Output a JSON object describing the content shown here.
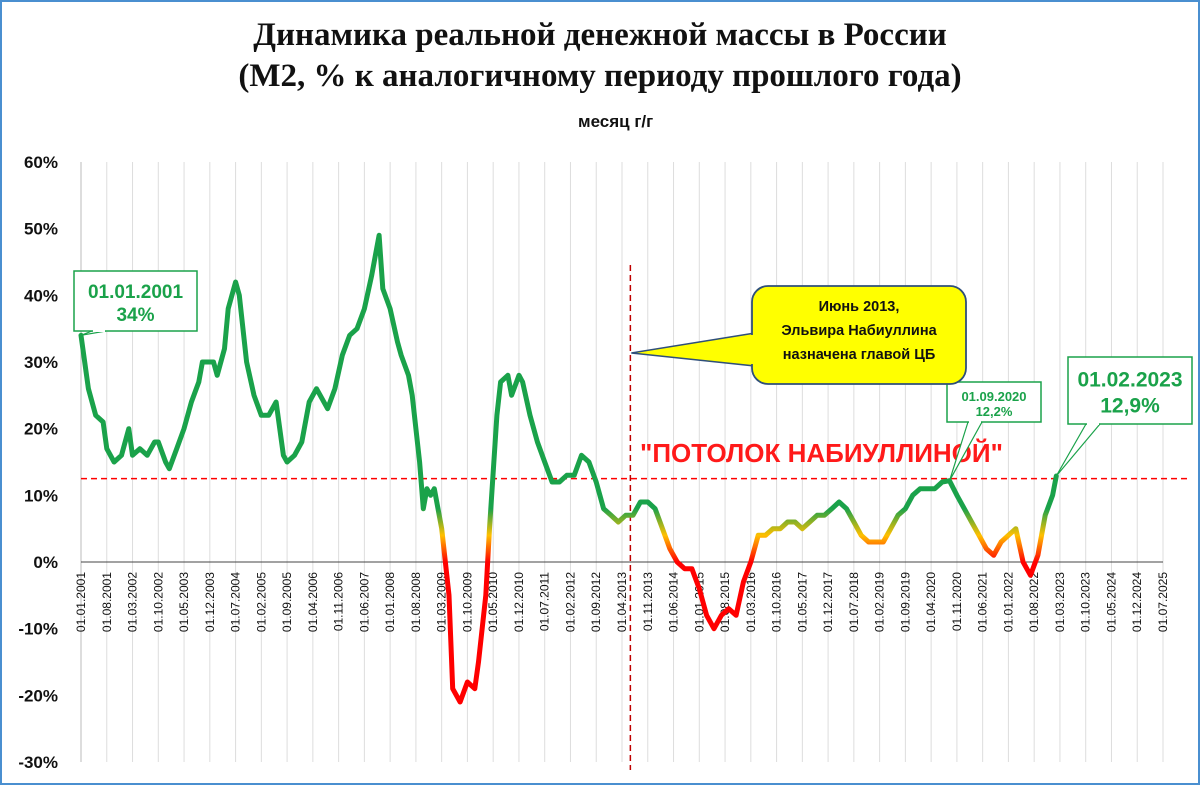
{
  "chart_data": {
    "type": "line",
    "title": "Динамика реальной денежной массы в России",
    "subtitle": "(М2, % к аналогичному периоду прошлого года)",
    "xlabel": "",
    "ylabel": "",
    "legend": {
      "label": "месяц г/г",
      "placement": "top-center"
    },
    "ylim": [
      -30,
      60
    ],
    "yticks": [
      "-30%",
      "-20%",
      "-10%",
      "0%",
      "10%",
      "20%",
      "30%",
      "40%",
      "50%",
      "60%"
    ],
    "x_range": [
      "2001-01",
      "2025-07"
    ],
    "x_tick_labels": [
      "01.01.2001",
      "01.08.2001",
      "01.03.2002",
      "01.10.2002",
      "01.05.2003",
      "01.12.2003",
      "01.07.2004",
      "01.02.2005",
      "01.09.2005",
      "01.04.2006",
      "01.11.2006",
      "01.06.2007",
      "01.01.2008",
      "01.08.2008",
      "01.03.2009",
      "01.10.2009",
      "01.05.2010",
      "01.12.2010",
      "01.07.2011",
      "01.02.2012",
      "01.09.2012",
      "01.04.2013",
      "01.11.2013",
      "01.06.2014",
      "01.01.2015",
      "01.08.2015",
      "01.03.2016",
      "01.10.2016",
      "01.05.2017",
      "01.12.2017",
      "01.07.2018",
      "01.02.2019",
      "01.09.2019",
      "01.04.2020",
      "01.11.2020",
      "01.06.2021",
      "01.01.2022",
      "01.08.2022",
      "01.03.2023",
      "01.10.2023",
      "01.05.2024",
      "01.12.2024",
      "01.07.2025"
    ],
    "grid": "vertical",
    "color_scale": {
      "high": "#1aa24a",
      "mid": "#ffc000",
      "low": "#ff0000"
    },
    "series": [
      {
        "name": "месяц г/г",
        "points": [
          [
            "2001-01",
            34
          ],
          [
            "2001-03",
            26
          ],
          [
            "2001-05",
            22
          ],
          [
            "2001-07",
            21
          ],
          [
            "2001-08",
            17
          ],
          [
            "2001-10",
            15
          ],
          [
            "2001-12",
            16
          ],
          [
            "2002-02",
            20
          ],
          [
            "2002-03",
            16
          ],
          [
            "2002-05",
            17
          ],
          [
            "2002-07",
            16
          ],
          [
            "2002-09",
            18
          ],
          [
            "2002-10",
            18
          ],
          [
            "2002-12",
            15
          ],
          [
            "2003-01",
            14
          ],
          [
            "2003-03",
            17
          ],
          [
            "2003-05",
            20
          ],
          [
            "2003-07",
            24
          ],
          [
            "2003-09",
            27
          ],
          [
            "2003-10",
            30
          ],
          [
            "2003-12",
            30
          ],
          [
            "2004-01",
            30
          ],
          [
            "2004-02",
            28
          ],
          [
            "2004-04",
            32
          ],
          [
            "2004-05",
            38
          ],
          [
            "2004-07",
            42
          ],
          [
            "2004-08",
            40
          ],
          [
            "2004-10",
            30
          ],
          [
            "2004-12",
            25
          ],
          [
            "2005-02",
            22
          ],
          [
            "2005-04",
            22
          ],
          [
            "2005-06",
            24
          ],
          [
            "2005-08",
            16
          ],
          [
            "2005-09",
            15
          ],
          [
            "2005-11",
            16
          ],
          [
            "2006-01",
            18
          ],
          [
            "2006-03",
            24
          ],
          [
            "2006-05",
            26
          ],
          [
            "2006-06",
            25
          ],
          [
            "2006-08",
            23
          ],
          [
            "2006-10",
            26
          ],
          [
            "2006-12",
            31
          ],
          [
            "2007-02",
            34
          ],
          [
            "2007-04",
            35
          ],
          [
            "2007-06",
            38
          ],
          [
            "2007-08",
            43
          ],
          [
            "2007-10",
            49
          ],
          [
            "2007-11",
            41
          ],
          [
            "2008-01",
            38
          ],
          [
            "2008-03",
            33
          ],
          [
            "2008-04",
            31
          ],
          [
            "2008-06",
            28
          ],
          [
            "2008-07",
            25
          ],
          [
            "2008-09",
            15
          ],
          [
            "2008-10",
            8
          ],
          [
            "2008-11",
            11
          ],
          [
            "2008-12",
            10
          ],
          [
            "2009-01",
            11
          ],
          [
            "2009-03",
            5
          ],
          [
            "2009-05",
            -5
          ],
          [
            "2009-06",
            -19
          ],
          [
            "2009-08",
            -21
          ],
          [
            "2009-10",
            -18
          ],
          [
            "2009-12",
            -19
          ],
          [
            "2010-01",
            -15
          ],
          [
            "2010-03",
            -5
          ],
          [
            "2010-04",
            5
          ],
          [
            "2010-06",
            22
          ],
          [
            "2010-07",
            27
          ],
          [
            "2010-09",
            28
          ],
          [
            "2010-10",
            25
          ],
          [
            "2010-12",
            28
          ],
          [
            "2011-01",
            27
          ],
          [
            "2011-03",
            22
          ],
          [
            "2011-05",
            18
          ],
          [
            "2011-07",
            15
          ],
          [
            "2011-09",
            12
          ],
          [
            "2011-11",
            12
          ],
          [
            "2012-01",
            13
          ],
          [
            "2012-03",
            13
          ],
          [
            "2012-05",
            16
          ],
          [
            "2012-07",
            15
          ],
          [
            "2012-09",
            12
          ],
          [
            "2012-11",
            8
          ],
          [
            "2013-01",
            7
          ],
          [
            "2013-03",
            6
          ],
          [
            "2013-05",
            7
          ],
          [
            "2013-07",
            7
          ],
          [
            "2013-09",
            9
          ],
          [
            "2013-11",
            9
          ],
          [
            "2014-01",
            8
          ],
          [
            "2014-03",
            5
          ],
          [
            "2014-05",
            2
          ],
          [
            "2014-07",
            0
          ],
          [
            "2014-09",
            -1
          ],
          [
            "2014-11",
            -1
          ],
          [
            "2015-01",
            -4
          ],
          [
            "2015-03",
            -8
          ],
          [
            "2015-05",
            -10
          ],
          [
            "2015-07",
            -8
          ],
          [
            "2015-09",
            -7
          ],
          [
            "2015-11",
            -8
          ],
          [
            "2016-01",
            -3
          ],
          [
            "2016-03",
            0
          ],
          [
            "2016-05",
            4
          ],
          [
            "2016-07",
            4
          ],
          [
            "2016-09",
            5
          ],
          [
            "2016-11",
            5
          ],
          [
            "2017-01",
            6
          ],
          [
            "2017-03",
            6
          ],
          [
            "2017-05",
            5
          ],
          [
            "2017-07",
            6
          ],
          [
            "2017-09",
            7
          ],
          [
            "2017-11",
            7
          ],
          [
            "2018-01",
            8
          ],
          [
            "2018-03",
            9
          ],
          [
            "2018-05",
            8
          ],
          [
            "2018-07",
            6
          ],
          [
            "2018-09",
            4
          ],
          [
            "2018-11",
            3
          ],
          [
            "2019-01",
            3
          ],
          [
            "2019-03",
            3
          ],
          [
            "2019-05",
            5
          ],
          [
            "2019-07",
            7
          ],
          [
            "2019-09",
            8
          ],
          [
            "2019-11",
            10
          ],
          [
            "2020-01",
            11
          ],
          [
            "2020-03",
            11
          ],
          [
            "2020-05",
            11
          ],
          [
            "2020-07",
            12
          ],
          [
            "2020-09",
            12.2
          ],
          [
            "2020-11",
            10
          ],
          [
            "2021-01",
            8
          ],
          [
            "2021-03",
            6
          ],
          [
            "2021-05",
            4
          ],
          [
            "2021-07",
            2
          ],
          [
            "2021-09",
            1
          ],
          [
            "2021-11",
            3
          ],
          [
            "2022-01",
            4
          ],
          [
            "2022-03",
            5
          ],
          [
            "2022-05",
            0
          ],
          [
            "2022-07",
            -2
          ],
          [
            "2022-09",
            1
          ],
          [
            "2022-11",
            7
          ],
          [
            "2023-01",
            10
          ],
          [
            "2023-02",
            12.9
          ]
        ]
      }
    ],
    "annotations": [
      {
        "date": "2001-01",
        "value": 34,
        "label_date": "01.01.2001",
        "label_value": "34%"
      },
      {
        "date": "2020-09",
        "value": 12.2,
        "label_date": "01.09.2020",
        "label_value": "12,2%"
      },
      {
        "date": "2023-02",
        "value": 12.9,
        "label_date": "01.02.2023",
        "label_value": "12,9%"
      }
    ],
    "callout": {
      "date": "2013-06",
      "lines": [
        "Июнь 2013,",
        "Эльвира Набиуллина",
        "назначена главой ЦБ"
      ],
      "fill": "#ffff00"
    },
    "reference_line": {
      "value": 12.5,
      "label": "\"ПОТОЛОК НАБИУЛЛИНОЙ\"",
      "color": "#ff0000"
    },
    "vertical_marker": {
      "date": "2013-06",
      "color": "#c00000"
    }
  }
}
